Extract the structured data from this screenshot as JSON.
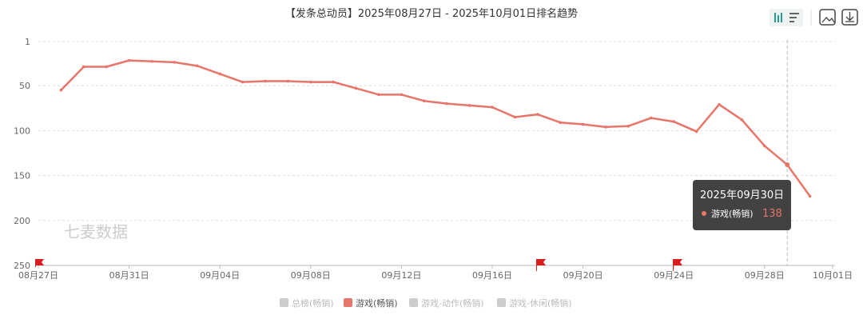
{
  "chart_data": {
    "type": "line",
    "title": "【发条总动员】2025年08月27日 - 2025年10月01日排名趋势",
    "categories": [
      "08月27日",
      null,
      null,
      null,
      "08月31日",
      null,
      null,
      null,
      "09月04日",
      null,
      null,
      null,
      "09月08日",
      null,
      null,
      null,
      "09月12日",
      null,
      null,
      null,
      "09月16日",
      null,
      null,
      null,
      "09月20日",
      null,
      null,
      null,
      "09月24日",
      null,
      null,
      null,
      "09月28日",
      null,
      null,
      "10月01日"
    ],
    "series": [
      {
        "name": "游戏(畅销)",
        "color": "#e8756a",
        "values": [
          null,
          55,
          29,
          29,
          22,
          23,
          24,
          28,
          37,
          46,
          45,
          45,
          46,
          46,
          53,
          60,
          60,
          67,
          70,
          72,
          74,
          85,
          82,
          91,
          93,
          96,
          95,
          86,
          90,
          101,
          71,
          88,
          117,
          138,
          173,
          null
        ]
      }
    ],
    "ylim": [
      1,
      250
    ],
    "y_inverted": true,
    "yticks": [
      1,
      50,
      100,
      150,
      200,
      250
    ],
    "grid": true,
    "legend": [
      "总榜(畅销)",
      "游戏(畅销)",
      "游戏-动作(畅销)",
      "游戏-休闲(畅销)"
    ],
    "legend_inactive_color": "#cccccc",
    "tooltip": {
      "title": "2025年09月30日"
    },
    "watermark": "七麦数据"
  }
}
